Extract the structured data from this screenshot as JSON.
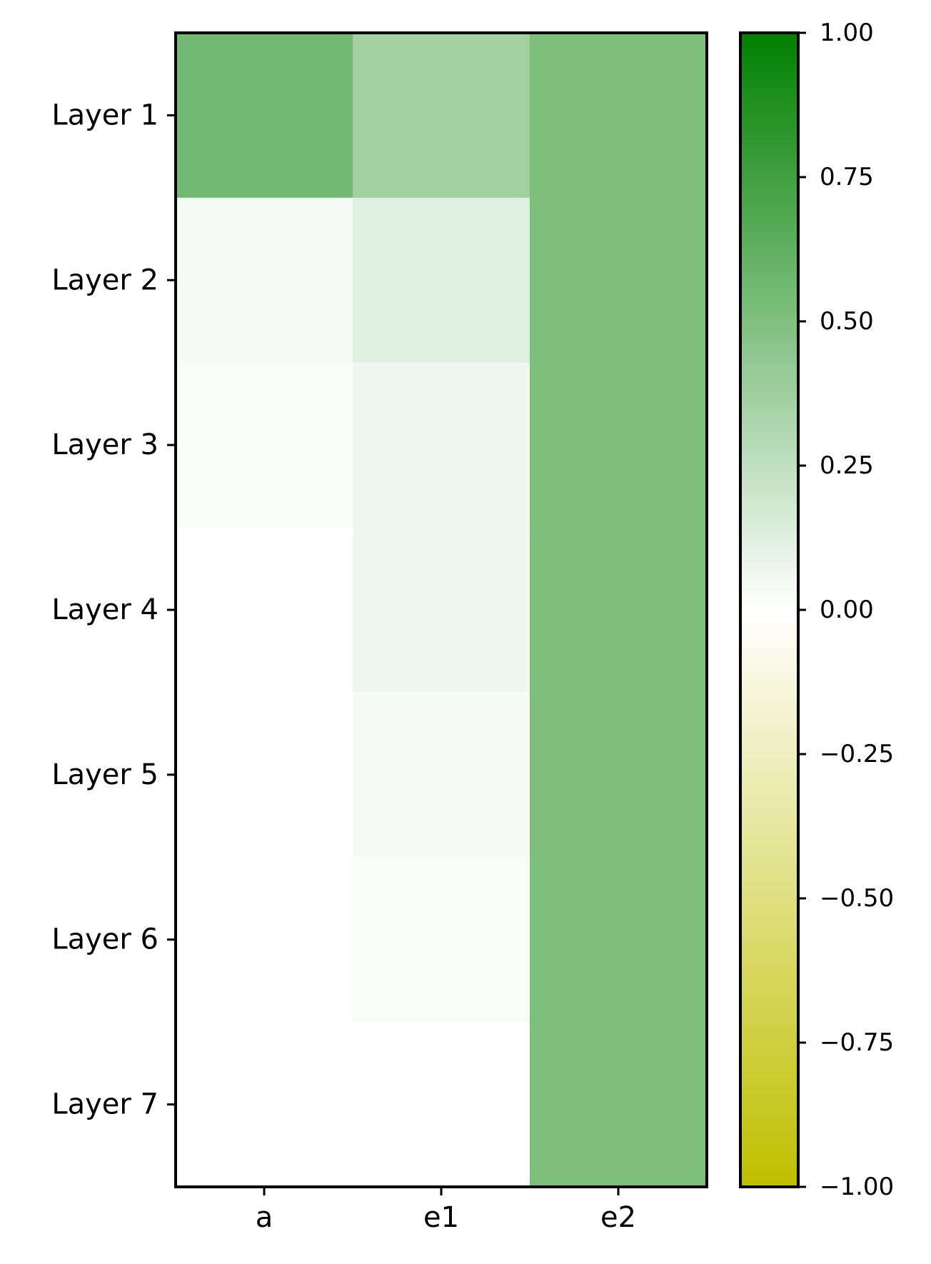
{
  "chart_data": {
    "type": "heatmap",
    "rows": [
      "Layer 1",
      "Layer 2",
      "Layer 3",
      "Layer 4",
      "Layer 5",
      "Layer 6",
      "Layer 7"
    ],
    "columns": [
      "a",
      "e1",
      "e2"
    ],
    "values": [
      [
        0.55,
        0.37,
        0.51
      ],
      [
        0.03,
        0.12,
        0.51
      ],
      [
        0.02,
        0.06,
        0.51
      ],
      [
        0.0,
        0.06,
        0.51
      ],
      [
        0.0,
        0.03,
        0.51
      ],
      [
        0.0,
        0.02,
        0.51
      ],
      [
        0.0,
        0.0,
        0.51
      ]
    ],
    "colorbar": {
      "range": [
        -1.0,
        1.0
      ],
      "ticks": [
        1.0,
        0.75,
        0.5,
        0.25,
        0.0,
        -0.25,
        -0.5,
        -0.75,
        -1.0
      ],
      "tick_labels": [
        "1.00",
        "0.75",
        "0.50",
        "0.25",
        "0.00",
        "−0.25",
        "−0.50",
        "−0.75",
        "−1.00"
      ],
      "colors": {
        "max": "#008000",
        "mid": "#ffffff",
        "min": "#bfbf00"
      }
    },
    "title": "",
    "xlabel": "",
    "ylabel": ""
  }
}
